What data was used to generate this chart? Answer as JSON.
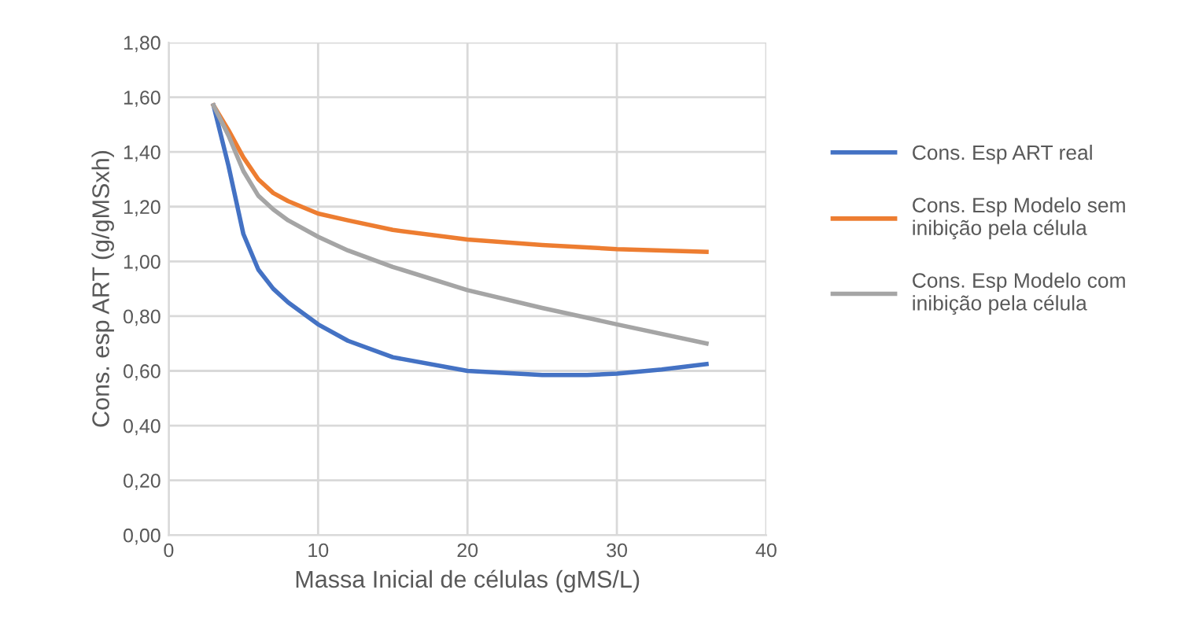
{
  "chart_data": {
    "type": "line",
    "xlabel": "Massa Inicial de células (gMS/L)",
    "ylabel": "Cons. esp ART (g/gMSxh)",
    "xlim": [
      0,
      40
    ],
    "xticks": [
      0,
      10,
      20,
      30,
      40
    ],
    "ylim": [
      0,
      1.8
    ],
    "yticks": [
      {
        "value": 0,
        "label": "0,00"
      },
      {
        "value": 0.2,
        "label": "0,20"
      },
      {
        "value": 0.4,
        "label": "0,40"
      },
      {
        "value": 0.6,
        "label": "0,60"
      },
      {
        "value": 0.8,
        "label": "0,80"
      },
      {
        "value": 1.0,
        "label": "1,00"
      },
      {
        "value": 1.2,
        "label": "1,20"
      },
      {
        "value": 1.4,
        "label": "1,40"
      },
      {
        "value": 1.6,
        "label": "1,60"
      },
      {
        "value": 1.8,
        "label": "1,80"
      }
    ],
    "grid": true,
    "legend": "right",
    "marker": "none",
    "line_style": "solid",
    "series": [
      {
        "name": "Cons. Esp ART real",
        "color": "#4472c4",
        "x": [
          3,
          4,
          5,
          6,
          7,
          8,
          10,
          12,
          15,
          20,
          25,
          28,
          30,
          33,
          36
        ],
        "values": [
          1.57,
          1.35,
          1.1,
          0.97,
          0.9,
          0.85,
          0.77,
          0.71,
          0.65,
          0.6,
          0.585,
          0.585,
          0.59,
          0.605,
          0.625
        ]
      },
      {
        "name": "Cons. Esp Modelo sem inibição pela célula",
        "color": "#ed7d31",
        "x": [
          3,
          4,
          5,
          6,
          7,
          8,
          10,
          12,
          15,
          20,
          25,
          30,
          36
        ],
        "values": [
          1.57,
          1.48,
          1.38,
          1.3,
          1.25,
          1.22,
          1.175,
          1.15,
          1.115,
          1.08,
          1.06,
          1.045,
          1.035
        ]
      },
      {
        "name": "Cons. Esp Modelo com inibição pela célula",
        "color": "#a5a5a5",
        "x": [
          3,
          4,
          5,
          6,
          7,
          8,
          10,
          12,
          15,
          20,
          25,
          30,
          36
        ],
        "values": [
          1.57,
          1.46,
          1.33,
          1.24,
          1.19,
          1.15,
          1.09,
          1.04,
          0.98,
          0.895,
          0.83,
          0.77,
          0.7
        ]
      }
    ]
  }
}
